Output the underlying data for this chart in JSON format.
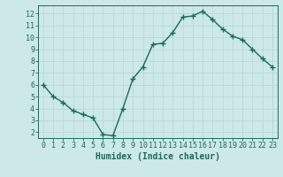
{
  "x": [
    0,
    1,
    2,
    3,
    4,
    5,
    6,
    7,
    8,
    9,
    10,
    11,
    12,
    13,
    14,
    15,
    16,
    17,
    18,
    19,
    20,
    21,
    22,
    23
  ],
  "y": [
    6.0,
    5.0,
    4.5,
    3.8,
    3.5,
    3.2,
    1.8,
    1.7,
    4.0,
    6.5,
    7.5,
    9.4,
    9.5,
    10.4,
    11.7,
    11.8,
    12.2,
    11.5,
    10.7,
    10.1,
    9.8,
    9.0,
    8.2,
    7.5
  ],
  "line_color": "#1a6b5a",
  "marker": "+",
  "markersize": 4,
  "linewidth": 1.0,
  "markeredgewidth": 1.0,
  "bg_color": "#cce8e8",
  "grid_color": "#b8d8d8",
  "xlabel": "Humidex (Indice chaleur)",
  "xlabel_fontsize": 7,
  "tick_fontsize": 6,
  "xlim": [
    -0.5,
    23.5
  ],
  "ylim": [
    1.5,
    12.7
  ],
  "yticks": [
    2,
    3,
    4,
    5,
    6,
    7,
    8,
    9,
    10,
    11,
    12
  ],
  "xticks": [
    0,
    1,
    2,
    3,
    4,
    5,
    6,
    7,
    8,
    9,
    10,
    11,
    12,
    13,
    14,
    15,
    16,
    17,
    18,
    19,
    20,
    21,
    22,
    23
  ],
  "tick_color": "#1a6b5a",
  "label_color": "#1a6b5a",
  "spine_color": "#1a6b5a"
}
